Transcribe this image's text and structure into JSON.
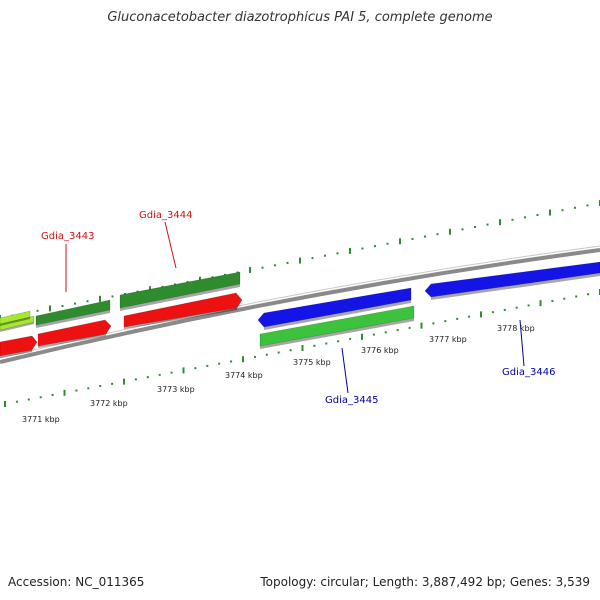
{
  "title": "Gluconacetobacter diazotrophicus PAI 5, complete genome",
  "footer": {
    "accession": "Accession: NC_011365",
    "summary": "Topology: circular; Length: 3,887,492 bp; Genes: 3,539"
  },
  "colors": {
    "backbone": "#8a8a8a",
    "tick": "#2e8b2e",
    "forward_label": "#d01010",
    "reverse_label": "#0000a0",
    "red": "#ee1111",
    "dark_green": "#2e8b2e",
    "light_green": "#a6e830",
    "green": "#3cc23c",
    "blue": "#1414e6"
  },
  "scale": {
    "unit": "kbp",
    "labels": [
      "3771 kbp",
      "3772 kbp",
      "3773 kbp",
      "3774 kbp",
      "3775 kbp",
      "3776 kbp",
      "3777 kbp",
      "3778 kbp"
    ]
  },
  "features": [
    {
      "color": "light_green",
      "strand": "forward",
      "row": 1
    },
    {
      "color": "dark_green",
      "strand": "forward",
      "row": 0
    },
    {
      "color": "dark_green",
      "strand": "forward",
      "row": 0
    },
    {
      "color": "red",
      "strand": "forward",
      "row": 1
    },
    {
      "color": "red",
      "strand": "forward",
      "row": 1
    },
    {
      "color": "red",
      "strand": "forward",
      "row": 1
    },
    {
      "color": "blue",
      "strand": "reverse",
      "row": 0
    },
    {
      "color": "blue",
      "strand": "reverse",
      "row": 0
    },
    {
      "color": "green",
      "strand": "reverse",
      "row": 1
    }
  ],
  "gene_labels": [
    {
      "text": "Gdia_3443",
      "color": "forward_label"
    },
    {
      "text": "Gdia_3444",
      "color": "forward_label"
    },
    {
      "text": "Gdia_3445",
      "color": "reverse_label"
    },
    {
      "text": "Gdia_3446",
      "color": "reverse_label"
    }
  ]
}
